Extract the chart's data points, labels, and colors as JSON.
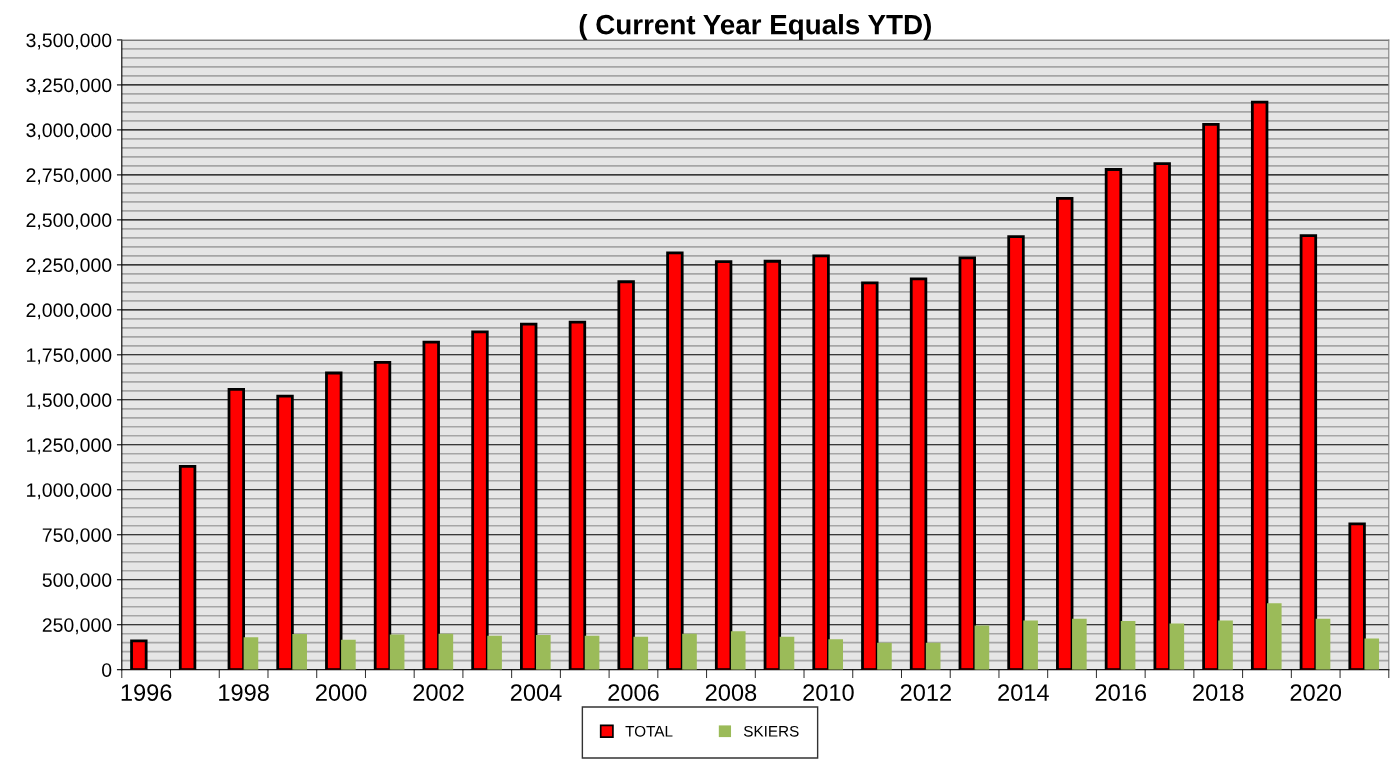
{
  "chart_data": {
    "type": "bar",
    "title": "( Current Year Equals YTD)",
    "categories": [
      "1996",
      null,
      "1998",
      null,
      "2000",
      null,
      "2002",
      null,
      "2004",
      null,
      "2006",
      null,
      "2008",
      null,
      "2010",
      null,
      "2012",
      null,
      "2014",
      null,
      "2016",
      null,
      "2018",
      null,
      "2020",
      null
    ],
    "series": [
      {
        "name": "TOTAL",
        "color": "#ff0000",
        "values": [
          160000,
          1130000,
          1558000,
          1521000,
          1649000,
          1708000,
          1820000,
          1878000,
          1921000,
          1932000,
          2156000,
          2316000,
          2268000,
          2270000,
          2300000,
          2150000,
          2172000,
          2289000,
          2407000,
          2620000,
          2780000,
          2812000,
          3031000,
          3154000,
          2412000,
          811000
        ]
      },
      {
        "name": "SKIERS",
        "color": "#9bbb59",
        "values": [
          null,
          null,
          181000,
          198000,
          167000,
          195000,
          200000,
          188000,
          193000,
          188000,
          183000,
          200000,
          214000,
          183000,
          169000,
          150000,
          150000,
          245000,
          274000,
          283000,
          271000,
          257000,
          274000,
          369000,
          283000,
          174000
        ]
      }
    ],
    "ylim": [
      0,
      3500000
    ],
    "yticks": [
      {
        "value": 0,
        "label": "0"
      },
      {
        "value": 250000,
        "label": "250,000"
      },
      {
        "value": 500000,
        "label": "500,000"
      },
      {
        "value": 750000,
        "label": "750,000"
      },
      {
        "value": 1000000,
        "label": "1,000,000"
      },
      {
        "value": 1250000,
        "label": "1,250,000"
      },
      {
        "value": 1500000,
        "label": "1,500,000"
      },
      {
        "value": 1750000,
        "label": "1,750,000"
      },
      {
        "value": 2000000,
        "label": "2,000,000"
      },
      {
        "value": 2250000,
        "label": "2,250,000"
      },
      {
        "value": 2500000,
        "label": "2,500,000"
      },
      {
        "value": 2750000,
        "label": "2,750,000"
      },
      {
        "value": 3000000,
        "label": "3,000,000"
      },
      {
        "value": 3250000,
        "label": "3,250,000"
      },
      {
        "value": 3500000,
        "label": "3,500,000"
      }
    ],
    "grid": "y",
    "legend": "bottom"
  }
}
